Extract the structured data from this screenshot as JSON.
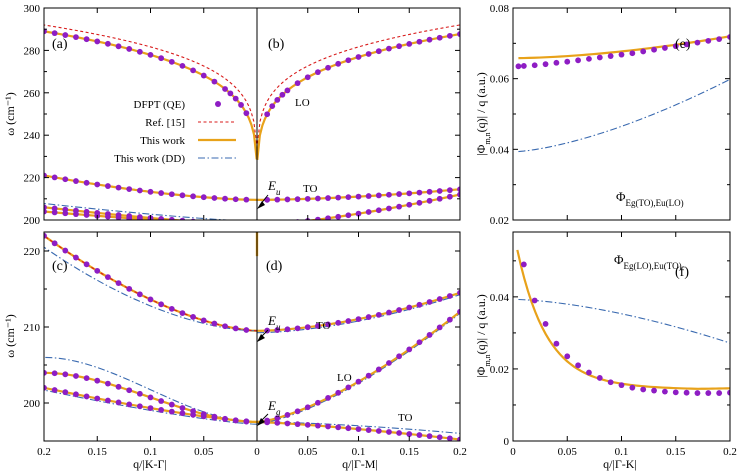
{
  "colors": {
    "dfpt": "#8e1dc4",
    "ref15": "#d81b1b",
    "this_work": "#e8a21a",
    "dd": "#3a6ab0",
    "axis": "#000000"
  },
  "legend": {
    "entries": [
      {
        "key": "dfpt",
        "label": "DFPT (QE)",
        "style": "marker"
      },
      {
        "key": "ref15",
        "label": "Ref. [15]",
        "style": "dashed"
      },
      {
        "key": "this_work",
        "label": "This work",
        "style": "solid"
      },
      {
        "key": "dd",
        "label": "This work (DD)",
        "style": "dashdot"
      }
    ]
  },
  "chart_data": [
    {
      "panel": "top-left-right",
      "type": "line",
      "panel_labels": [
        "(a)",
        "(b)"
      ],
      "ylabel": "ω (cm⁻¹)",
      "ylim": [
        200,
        300
      ],
      "yticks": [
        200,
        220,
        240,
        260,
        280,
        300
      ],
      "xlim_left": [
        0.2,
        0
      ],
      "xlim_right": [
        0,
        0.2
      ],
      "annotations": [
        "E_u",
        "LO",
        "TO"
      ],
      "series": [
        {
          "branch": "LO-left",
          "q": [
            0.2,
            0.15,
            0.1,
            0.07,
            0.05,
            0.03,
            0.02,
            0.01,
            0.005,
            0
          ],
          "omega": [
            291,
            289,
            285,
            280,
            274,
            264,
            256,
            244,
            234,
            212
          ]
        },
        {
          "branch": "LO-right",
          "q": [
            0,
            0.005,
            0.01,
            0.02,
            0.03,
            0.05,
            0.07,
            0.1,
            0.15,
            0.2
          ],
          "omega": [
            212,
            234,
            244,
            256,
            264,
            274,
            280,
            285,
            288,
            290
          ]
        },
        {
          "branch": "TO-left",
          "q": [
            0.2,
            0.15,
            0.1,
            0.05,
            0
          ],
          "omega": [
            221,
            216,
            212,
            210,
            209.5
          ]
        },
        {
          "branch": "TO-right",
          "q": [
            0,
            0.05,
            0.1,
            0.15,
            0.2
          ],
          "omega": [
            209.5,
            210,
            211,
            213,
            214.5
          ]
        }
      ]
    },
    {
      "panel": "bottom-left-right",
      "type": "line",
      "panel_labels": [
        "(c)",
        "(d)"
      ],
      "ylabel": "ω (cm⁻¹)",
      "ylim": [
        195,
        222
      ],
      "yticks": [
        200,
        210,
        220
      ],
      "xlabel_left": "q/|K-Γ|",
      "xlabel_right": "q/|Γ-M|",
      "xticks_left": [
        "0.2",
        "0.15",
        "0.1",
        "0.05",
        "0"
      ],
      "xticks_right": [
        "0.05",
        "0.1",
        "0.15",
        "0.2"
      ],
      "annotations": [
        "E_u",
        "TO",
        "LO",
        "E_g",
        "TO"
      ],
      "series": [
        {
          "branch": "Eu-TO-left",
          "q": [
            0.2,
            0.15,
            0.1,
            0.05,
            0
          ],
          "omega": [
            222,
            216,
            212,
            210,
            209.5
          ]
        },
        {
          "branch": "Eu-TO-right",
          "q": [
            0,
            0.05,
            0.1,
            0.15,
            0.2
          ],
          "omega": [
            209.5,
            210,
            211,
            212.5,
            214.5
          ]
        },
        {
          "branch": "Eg-left-1",
          "q": [
            0.2,
            0.15,
            0.1,
            0.05,
            0
          ],
          "omega": [
            204,
            203,
            201,
            198.5,
            197.5
          ]
        },
        {
          "branch": "Eg-left-2",
          "q": [
            0.2,
            0.15,
            0.1,
            0.05,
            0
          ],
          "omega": [
            202,
            200,
            198.7,
            197.8,
            197.5
          ]
        },
        {
          "branch": "Eg-LO-right",
          "q": [
            0,
            0.05,
            0.1,
            0.15,
            0.2
          ],
          "omega": [
            197.5,
            199.5,
            203,
            207.5,
            212
          ]
        },
        {
          "branch": "Eg-TO-right",
          "q": [
            0,
            0.05,
            0.1,
            0.15,
            0.2
          ],
          "omega": [
            197.5,
            197,
            196.5,
            195.9,
            195.3
          ]
        }
      ]
    },
    {
      "panel": "top-right-inset",
      "type": "line",
      "panel_label": "(e)",
      "ylabel": "|Φ_{m,n}(q)| / q (a.u.)",
      "ylim": [
        0.02,
        0.08
      ],
      "yticks": [
        "0.02",
        "0.04",
        "0.06",
        "0.08"
      ],
      "legend_text": "Φ_{E_g(TO),E_u(LO)}",
      "series": [
        {
          "name": "DFPT (QE)",
          "x": [
            0.005,
            0.02,
            0.04,
            0.06,
            0.08,
            0.1,
            0.12,
            0.14,
            0.16,
            0.18,
            0.2
          ],
          "y": [
            0.0635,
            0.0638,
            0.0645,
            0.0652,
            0.066,
            0.0668,
            0.0677,
            0.0687,
            0.0697,
            0.0707,
            0.0718
          ]
        },
        {
          "name": "This work",
          "x": [
            0.005,
            0.05,
            0.1,
            0.15,
            0.2
          ],
          "y": [
            0.0658,
            0.0665,
            0.0678,
            0.0697,
            0.072
          ]
        },
        {
          "name": "This work (DD)",
          "x": [
            0.005,
            0.05,
            0.1,
            0.15,
            0.2
          ],
          "y": [
            0.0393,
            0.042,
            0.046,
            0.0525,
            0.0598
          ]
        }
      ]
    },
    {
      "panel": "bottom-right-inset",
      "type": "line",
      "panel_label": "(f)",
      "ylabel": "|Φ_{m,n}(q)| / q (a.u.)",
      "xlabel": "q/|Γ-K|",
      "xlim": [
        0,
        0.2
      ],
      "xticks": [
        "0",
        "0.05",
        "0.1",
        "0.15",
        "0.2"
      ],
      "ylim": [
        0,
        0.058
      ],
      "yticks": [
        "0",
        "0.02",
        "0.04"
      ],
      "legend_text": "Φ_{E_g(LO),E_u(TO)}",
      "series": [
        {
          "name": "DFPT (QE)",
          "x": [
            0.01,
            0.02,
            0.03,
            0.04,
            0.05,
            0.06,
            0.07,
            0.08,
            0.09,
            0.1,
            0.11,
            0.12,
            0.13,
            0.14,
            0.15,
            0.16,
            0.17,
            0.18,
            0.19,
            0.2
          ],
          "y": [
            0.049,
            0.039,
            0.0325,
            0.027,
            0.0235,
            0.021,
            0.019,
            0.0175,
            0.0163,
            0.0155,
            0.0148,
            0.0143,
            0.014,
            0.0137,
            0.0135,
            0.0134,
            0.0133,
            0.0133,
            0.0133,
            0.0134
          ]
        },
        {
          "name": "This work",
          "x": [
            0.005,
            0.01,
            0.02,
            0.03,
            0.05,
            0.07,
            0.1,
            0.13,
            0.16,
            0.18,
            0.2
          ],
          "y": [
            0.056,
            0.05,
            0.042,
            0.0355,
            0.0275,
            0.0225,
            0.0185,
            0.0162,
            0.0152,
            0.015,
            0.0152
          ]
        },
        {
          "name": "This work (DD)",
          "x": [
            0.005,
            0.05,
            0.1,
            0.15,
            0.2
          ],
          "y": [
            0.0393,
            0.038,
            0.0355,
            0.0318,
            0.0272
          ]
        }
      ]
    }
  ],
  "text": {
    "panel_a": "(a)",
    "panel_b": "(b)",
    "panel_c": "(c)",
    "panel_d": "(d)",
    "panel_e": "(e)",
    "panel_f": "(f)",
    "ylabel_omega": "ω (cm⁻¹)",
    "ylabel_phi": "|Φ_{m,n}(q)| / q (a.u.)",
    "xlabel_kg": "q/|K-Γ|",
    "xlabel_gm": "q/|Γ-M|",
    "xlabel_gk": "q/|Γ-K|",
    "ann_eu": "E_u",
    "ann_lo": "LO",
    "ann_to": "TO",
    "ann_eg": "E_g",
    "phi_e": "Φ_{E_g(TO),E_u(LO)}",
    "phi_f": "Φ_{E_g(LO),E_u(TO)}"
  }
}
